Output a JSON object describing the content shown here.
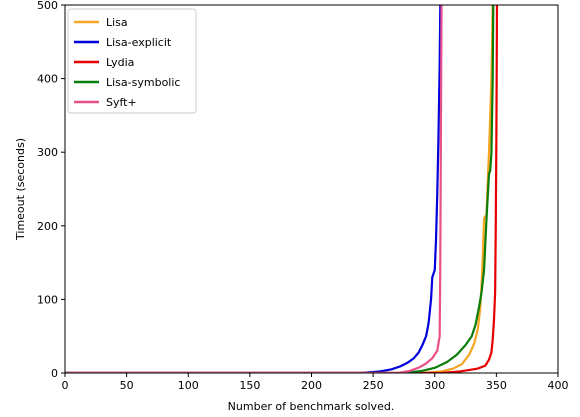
{
  "chart_data": {
    "type": "line",
    "title": "",
    "xlabel": "Number of benchmark solved.",
    "ylabel": "Timeout (seconds)",
    "xlim": [
      0,
      400
    ],
    "ylim": [
      0,
      500
    ],
    "x_ticks": [
      0,
      50,
      100,
      150,
      200,
      250,
      300,
      350,
      400
    ],
    "y_ticks": [
      0,
      100,
      200,
      300,
      400,
      500
    ],
    "grid": false,
    "legend_position": "top-left",
    "series": [
      {
        "name": "Lisa",
        "color": "#f5a623",
        "points": [
          [
            0,
            0
          ],
          [
            290,
            0
          ],
          [
            305,
            2
          ],
          [
            315,
            6
          ],
          [
            322,
            12
          ],
          [
            328,
            25
          ],
          [
            332,
            40
          ],
          [
            335,
            60
          ],
          [
            337,
            90
          ],
          [
            338,
            120
          ],
          [
            339,
            160
          ],
          [
            340,
            210
          ],
          [
            342,
            215
          ],
          [
            343,
            260
          ],
          [
            344,
            300
          ],
          [
            346,
            400
          ],
          [
            347,
            500
          ]
        ]
      },
      {
        "name": "Lisa-explicit",
        "color": "#0000dd",
        "points": [
          [
            0,
            0
          ],
          [
            240,
            0
          ],
          [
            255,
            2
          ],
          [
            265,
            5
          ],
          [
            272,
            9
          ],
          [
            278,
            14
          ],
          [
            283,
            20
          ],
          [
            287,
            28
          ],
          [
            290,
            38
          ],
          [
            293,
            50
          ],
          [
            295,
            68
          ],
          [
            297,
            100
          ],
          [
            298,
            130
          ],
          [
            300,
            140
          ],
          [
            301,
            180
          ],
          [
            302,
            240
          ],
          [
            303,
            320
          ],
          [
            304,
            420
          ],
          [
            304.5,
            500
          ]
        ]
      },
      {
        "name": "Lydia",
        "color": "#e80000",
        "points": [
          [
            0,
            0
          ],
          [
            305,
            0
          ],
          [
            320,
            2
          ],
          [
            335,
            6
          ],
          [
            341,
            10
          ],
          [
            344,
            18
          ],
          [
            346,
            28
          ],
          [
            347,
            45
          ],
          [
            348,
            70
          ],
          [
            349,
            110
          ],
          [
            349.5,
            200
          ],
          [
            350,
            320
          ],
          [
            350.5,
            500
          ]
        ]
      },
      {
        "name": "Lisa-symbolic",
        "color": "#0a7d0a",
        "points": [
          [
            0,
            0
          ],
          [
            275,
            0
          ],
          [
            290,
            3
          ],
          [
            300,
            7
          ],
          [
            310,
            15
          ],
          [
            318,
            25
          ],
          [
            325,
            38
          ],
          [
            330,
            50
          ],
          [
            333,
            65
          ],
          [
            336,
            90
          ],
          [
            338,
            110
          ],
          [
            340,
            140
          ],
          [
            341,
            175
          ],
          [
            342,
            210
          ],
          [
            343,
            240
          ],
          [
            344,
            270
          ],
          [
            345,
            275
          ],
          [
            346,
            300
          ],
          [
            347,
            400
          ],
          [
            347.5,
            500
          ]
        ]
      },
      {
        "name": "Syft+",
        "color": "#e8508a",
        "points": [
          [
            0,
            0
          ],
          [
            270,
            0
          ],
          [
            280,
            3
          ],
          [
            288,
            8
          ],
          [
            293,
            13
          ],
          [
            298,
            20
          ],
          [
            302,
            30
          ],
          [
            304,
            50
          ],
          [
            304.5,
            150
          ],
          [
            305,
            330
          ],
          [
            305.5,
            500
          ]
        ]
      }
    ]
  }
}
